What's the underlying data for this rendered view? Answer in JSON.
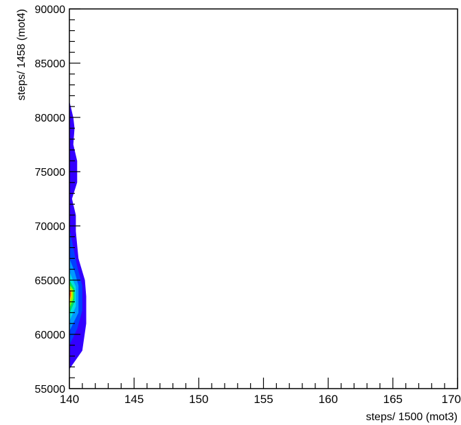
{
  "chart_data": {
    "type": "heatmap",
    "style": "filled-contour",
    "title": "",
    "xlabel": "steps/ 1500 (mot3)",
    "ylabel": "steps/ 1458 (mot4)",
    "xlim": [
      140,
      170
    ],
    "ylim": [
      55000,
      90000
    ],
    "x_ticks": [
      140,
      145,
      150,
      155,
      160,
      165,
      170
    ],
    "y_ticks": [
      55000,
      60000,
      65000,
      70000,
      75000,
      80000,
      85000,
      90000
    ],
    "x_minor_step": 1,
    "y_minor_step": 1000,
    "grid": false,
    "legend": "none",
    "peak": {
      "x": 140,
      "y": 63800
    },
    "contour_levels": [
      {
        "level": 1,
        "color": "#3300ff",
        "outline": [
          [
            140,
            56800
          ],
          [
            141,
            58500
          ],
          [
            141.3,
            61000
          ],
          [
            141.3,
            63500
          ],
          [
            141.2,
            65000
          ],
          [
            140.7,
            67000
          ],
          [
            140.5,
            69500
          ],
          [
            140.5,
            71000
          ],
          [
            140.2,
            72500
          ],
          [
            140.6,
            74000
          ],
          [
            140.6,
            76000
          ],
          [
            140.3,
            77500
          ],
          [
            140.4,
            79000
          ],
          [
            140.3,
            80000
          ],
          [
            140,
            81500
          ]
        ]
      },
      {
        "level": 2,
        "color": "#0040ff",
        "outline": [
          [
            140,
            59000
          ],
          [
            140.6,
            60500
          ],
          [
            141,
            62200
          ],
          [
            141,
            64500
          ],
          [
            140.6,
            66300
          ],
          [
            140.3,
            68000
          ],
          [
            140,
            69800
          ]
        ]
      },
      {
        "level": 3,
        "color": "#0099ff",
        "outline": [
          [
            140,
            60300
          ],
          [
            140.7,
            62000
          ],
          [
            140.7,
            64500
          ],
          [
            140.4,
            65800
          ],
          [
            140,
            67000
          ]
        ]
      },
      {
        "level": 4,
        "color": "#00e0e0",
        "outline": [
          [
            140,
            61200
          ],
          [
            140.5,
            62600
          ],
          [
            140.5,
            64400
          ],
          [
            140.2,
            65200
          ],
          [
            140,
            65800
          ]
        ]
      },
      {
        "level": 5,
        "color": "#00e060",
        "outline": [
          [
            140,
            61900
          ],
          [
            140.4,
            63000
          ],
          [
            140.4,
            64200
          ],
          [
            140,
            65000
          ]
        ]
      },
      {
        "level": 6,
        "color": "#8cff00",
        "outline": [
          [
            140,
            62400
          ],
          [
            140.3,
            63300
          ],
          [
            140.3,
            64100
          ],
          [
            140,
            64600
          ]
        ]
      },
      {
        "level": 7,
        "color": "#ffd000",
        "outline": [
          [
            140,
            62800
          ],
          [
            140.2,
            63500
          ],
          [
            140.2,
            64000
          ],
          [
            140,
            64300
          ]
        ]
      },
      {
        "level": 8,
        "color": "#ff6a00",
        "outline": [
          [
            140,
            63100
          ],
          [
            140.12,
            63600
          ],
          [
            140.12,
            64000
          ],
          [
            140,
            64150
          ]
        ]
      },
      {
        "level": 9,
        "color": "#ff0000",
        "outline": [
          [
            140,
            63400
          ],
          [
            140.07,
            63750
          ],
          [
            140,
            64000
          ]
        ]
      }
    ]
  }
}
